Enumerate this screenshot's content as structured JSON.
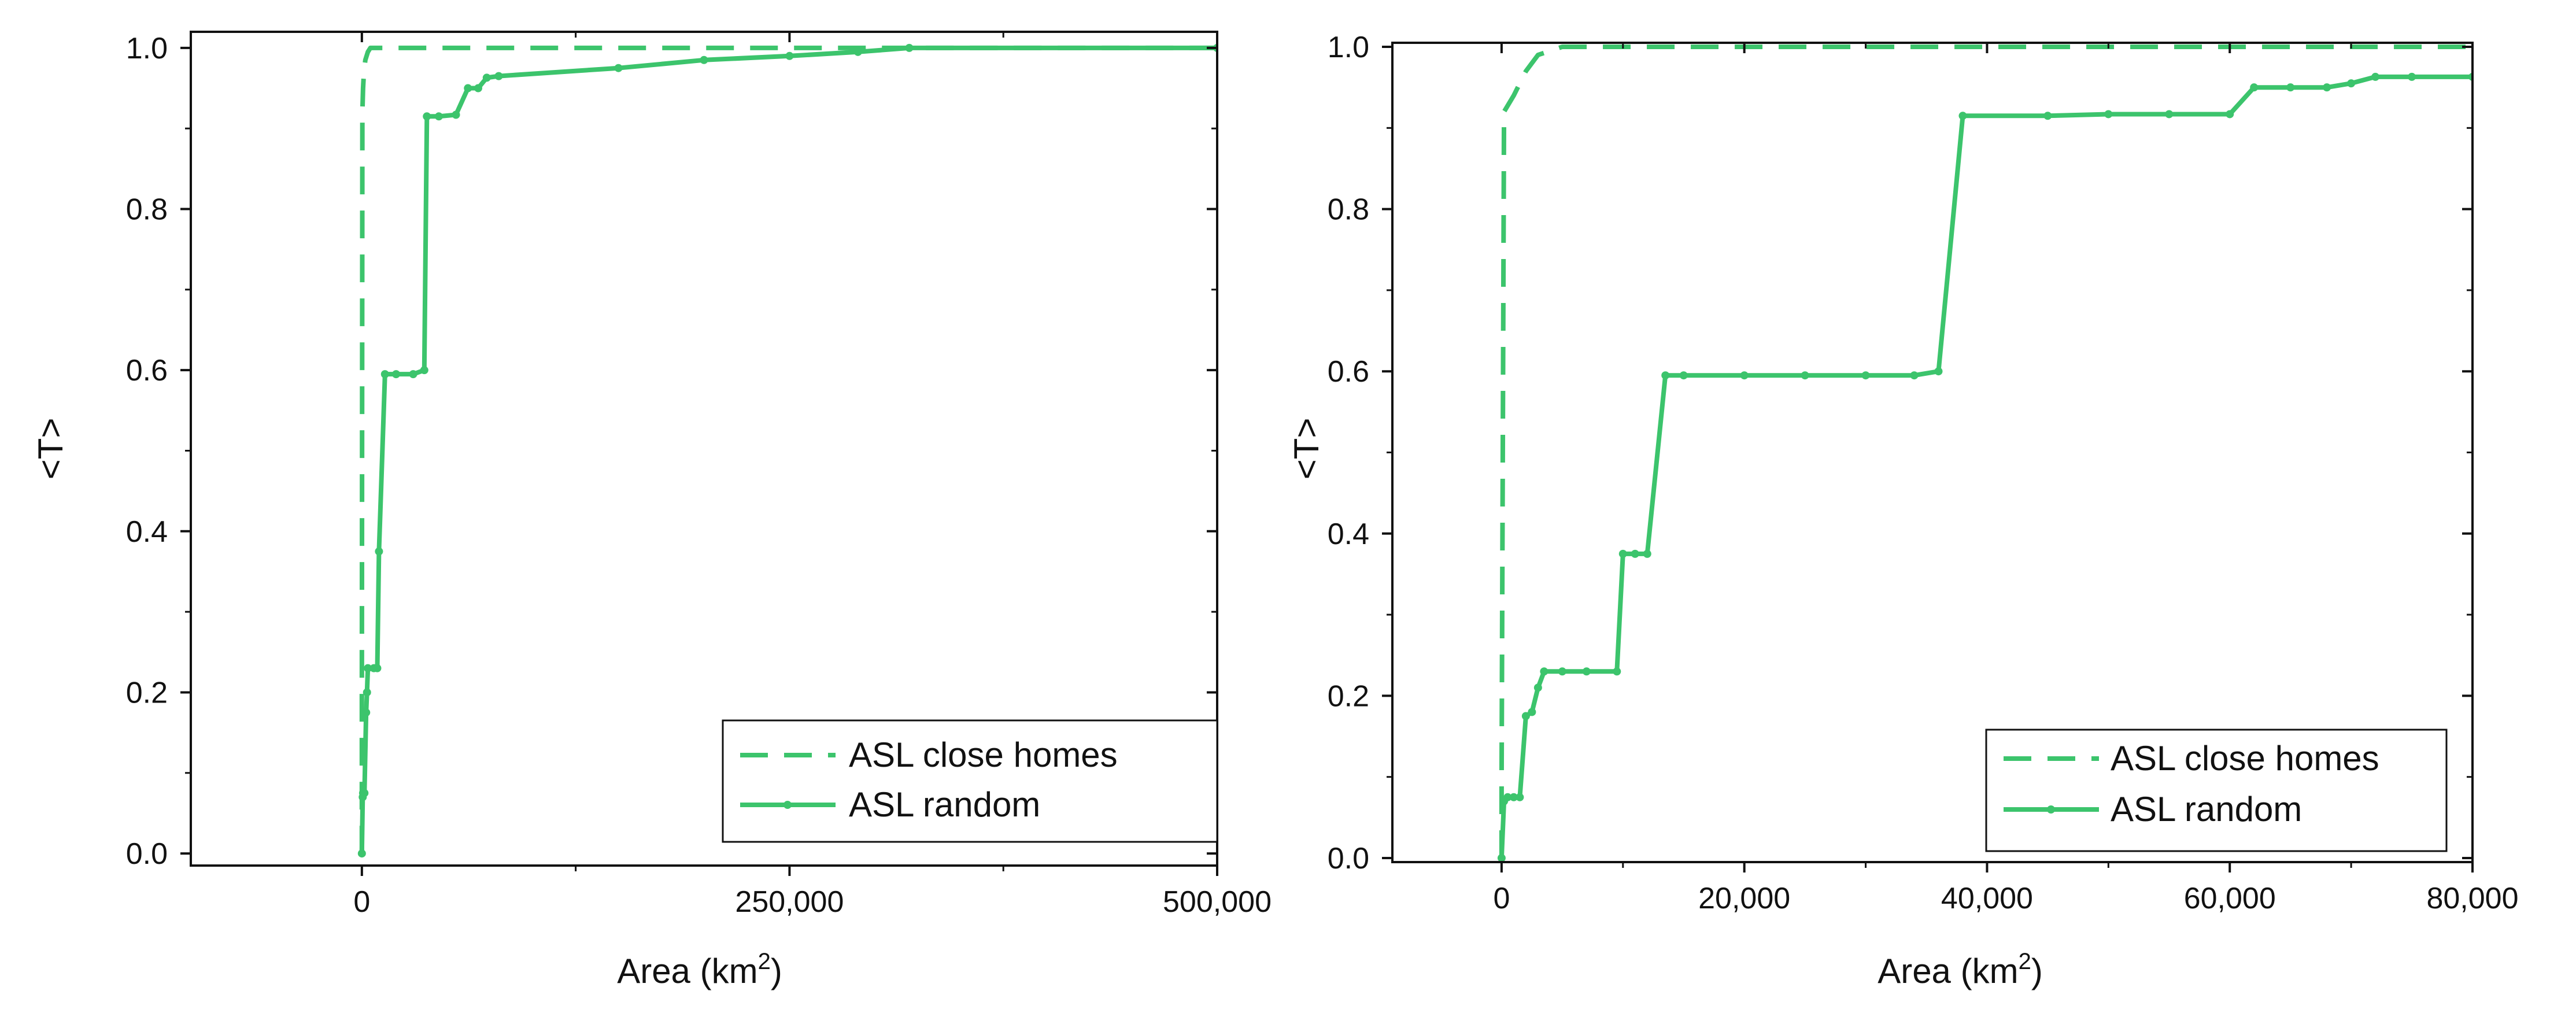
{
  "colors": {
    "series": "#3CC46C",
    "axis": "#111111",
    "background": "#ffffff"
  },
  "chart_data": [
    {
      "type": "line",
      "title": "",
      "xlabel": "Area (km",
      "xlabel_sup": "2",
      "xlabel_close": ")",
      "ylabel": "<T>",
      "xlim": [
        -100000,
        500000
      ],
      "ylim": [
        -0.015,
        1.02
      ],
      "xticks": [
        0,
        250000,
        500000
      ],
      "xtick_labels": [
        "0",
        "250,000",
        "500,000"
      ],
      "yticks": [
        0.0,
        0.2,
        0.4,
        0.6,
        0.8,
        1.0
      ],
      "ytick_labels": [
        "0.0",
        "0.2",
        "0.4",
        "0.6",
        "0.8",
        "1.0"
      ],
      "legend_position": "bottom-right",
      "series": [
        {
          "name": "ASL close homes",
          "style": "dashed",
          "x": [
            0,
            0,
            300,
            700,
            1200,
            2000,
            3500,
            5000,
            500000
          ],
          "y": [
            0,
            0.2,
            0.92,
            0.95,
            0.97,
            0.985,
            0.995,
            1.0,
            1.0
          ]
        },
        {
          "name": "ASL random",
          "style": "solid-markers",
          "x": [
            0,
            500,
            700,
            1500,
            2500,
            3000,
            3500,
            7000,
            9000,
            10000,
            13500,
            20000,
            30000,
            36500,
            38000,
            45000,
            55000,
            62000,
            68000,
            73000,
            80000,
            150000,
            200000,
            250000,
            290000,
            320000,
            500000
          ],
          "y": [
            0,
            0.07,
            0.075,
            0.075,
            0.175,
            0.2,
            0.23,
            0.23,
            0.23,
            0.375,
            0.595,
            0.595,
            0.595,
            0.6,
            0.915,
            0.915,
            0.917,
            0.95,
            0.95,
            0.963,
            0.965,
            0.975,
            0.985,
            0.99,
            0.995,
            1.0,
            1.0
          ]
        }
      ]
    },
    {
      "type": "line",
      "title": "",
      "xlabel": "Area (km",
      "xlabel_sup": "2",
      "xlabel_close": ")",
      "ylabel": "<T>",
      "xlim": [
        -9000,
        80000
      ],
      "ylim": [
        -0.005,
        1.005
      ],
      "xticks": [
        0,
        20000,
        40000,
        60000,
        80000
      ],
      "xtick_labels": [
        "0",
        "20,000",
        "40,000",
        "60,000",
        "80,000"
      ],
      "yticks": [
        0.0,
        0.2,
        0.4,
        0.6,
        0.8,
        1.0
      ],
      "ytick_labels": [
        "0.0",
        "0.2",
        "0.4",
        "0.6",
        "0.8",
        "1.0"
      ],
      "legend_position": "bottom-right",
      "series": [
        {
          "name": "ASL close homes",
          "style": "dashed",
          "x": [
            0,
            0,
            200,
            1000,
            2000,
            3000,
            5000,
            80000
          ],
          "y": [
            0,
            0.1,
            0.92,
            0.94,
            0.97,
            0.99,
            1.0,
            1.0
          ]
        },
        {
          "name": "ASL random",
          "style": "solid-markers",
          "x": [
            0,
            200,
            500,
            1000,
            1500,
            2000,
            2500,
            3000,
            3500,
            5000,
            7000,
            9500,
            10000,
            11000,
            12000,
            13500,
            15000,
            20000,
            25000,
            30000,
            34000,
            36000,
            38000,
            45000,
            50000,
            55000,
            60000,
            62000,
            65000,
            68000,
            70000,
            72000,
            75000,
            80000
          ],
          "y": [
            0,
            0.07,
            0.075,
            0.075,
            0.075,
            0.175,
            0.18,
            0.21,
            0.23,
            0.23,
            0.23,
            0.23,
            0.375,
            0.375,
            0.375,
            0.595,
            0.595,
            0.595,
            0.595,
            0.595,
            0.595,
            0.6,
            0.915,
            0.915,
            0.917,
            0.917,
            0.917,
            0.95,
            0.95,
            0.95,
            0.955,
            0.963,
            0.963,
            0.963
          ]
        }
      ]
    }
  ]
}
